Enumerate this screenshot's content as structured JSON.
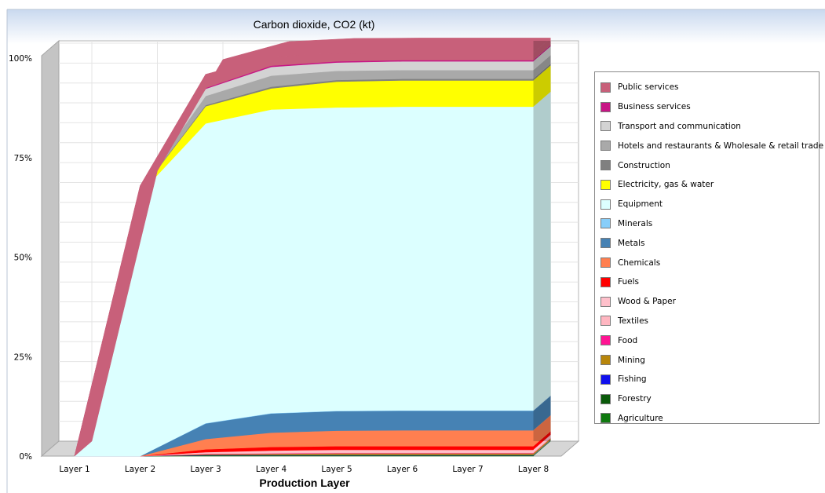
{
  "chart_data": {
    "type": "area",
    "stacked": true,
    "percent_axis": true,
    "title": "Carbon dioxide, CO2 (kt)",
    "xlabel": "Production Layer",
    "ylabel": "",
    "ylim": [
      0,
      100
    ],
    "y_ticks": [
      "0%",
      "25%",
      "50%",
      "75%",
      "100%"
    ],
    "grid": true,
    "legend_position": "right",
    "categories": [
      "Layer 1",
      "Layer 2",
      "Layer 3",
      "Layer 4",
      "Layer 5",
      "Layer 6",
      "Layer 7",
      "Layer 8"
    ],
    "series": [
      {
        "name": "Agriculture",
        "color": "#0f7a0f",
        "values": [
          0,
          0,
          0.1,
          0.1,
          0.1,
          0.1,
          0.1,
          0.1
        ]
      },
      {
        "name": "Forestry",
        "color": "#0a5a0a",
        "values": [
          0,
          0,
          0.1,
          0.1,
          0.1,
          0.1,
          0.1,
          0.1
        ]
      },
      {
        "name": "Fishing",
        "color": "#1010ee",
        "values": [
          0,
          0,
          0.1,
          0.1,
          0.1,
          0.1,
          0.1,
          0.1
        ]
      },
      {
        "name": "Mining",
        "color": "#b8860b",
        "values": [
          0,
          0,
          0.2,
          0.3,
          0.4,
          0.4,
          0.4,
          0.4
        ]
      },
      {
        "name": "Food",
        "color": "#ff1493",
        "values": [
          0,
          0,
          0.1,
          0.1,
          0.1,
          0.1,
          0.1,
          0.1
        ]
      },
      {
        "name": "Textiles",
        "color": "#ffb6c1",
        "values": [
          0,
          0,
          0.1,
          0.2,
          0.2,
          0.2,
          0.2,
          0.2
        ]
      },
      {
        "name": "Wood & Paper",
        "color": "#ffc0cb",
        "values": [
          0,
          0,
          0.3,
          0.5,
          0.6,
          0.6,
          0.6,
          0.6
        ]
      },
      {
        "name": "Fuels",
        "color": "#ff0000",
        "values": [
          0,
          0,
          0.7,
          0.9,
          0.9,
          0.9,
          0.9,
          0.9
        ]
      },
      {
        "name": "Chemicals",
        "color": "#ff7f50",
        "values": [
          0,
          0,
          2.6,
          3.6,
          3.9,
          4.0,
          4.0,
          4.0
        ]
      },
      {
        "name": "Metals",
        "color": "#4682b4",
        "values": [
          0,
          0,
          3.9,
          4.8,
          4.9,
          4.9,
          4.9,
          4.9
        ]
      },
      {
        "name": "Minerals",
        "color": "#87cefa",
        "values": [
          0,
          0,
          0.1,
          0.1,
          0.1,
          0.1,
          0.1,
          0.1
        ]
      },
      {
        "name": "Equipment",
        "color": "#dcffff",
        "values": [
          0,
          66,
          75.3,
          76.3,
          76.2,
          76.3,
          76.3,
          76.3
        ]
      },
      {
        "name": "Electricity, gas & water",
        "color": "#ffff00",
        "values": [
          0,
          0.4,
          4.3,
          5.3,
          6.5,
          6.6,
          6.6,
          6.6
        ]
      },
      {
        "name": "Construction",
        "color": "#808080",
        "values": [
          0,
          0.1,
          0.3,
          0.4,
          0.4,
          0.4,
          0.4,
          0.4
        ]
      },
      {
        "name": "Hotels and restaurants & Wholesale & retail trade",
        "color": "#a9a9a9",
        "values": [
          0,
          0.8,
          2.3,
          2.8,
          2.3,
          2.2,
          2.2,
          2.2
        ]
      },
      {
        "name": "Transport and communication",
        "color": "#d3d3d3",
        "values": [
          0,
          0.3,
          1.8,
          2.2,
          2.1,
          2.2,
          2.2,
          2.2
        ]
      },
      {
        "name": "Business services",
        "color": "#c71585",
        "values": [
          0,
          0.1,
          0.2,
          0.3,
          0.3,
          0.3,
          0.3,
          0.3
        ]
      },
      {
        "name": "Public services",
        "color": "#c8607a",
        "values": [
          0,
          0.2,
          3.4,
          2.3,
          2.0,
          1.8,
          1.8,
          1.8
        ]
      }
    ]
  }
}
